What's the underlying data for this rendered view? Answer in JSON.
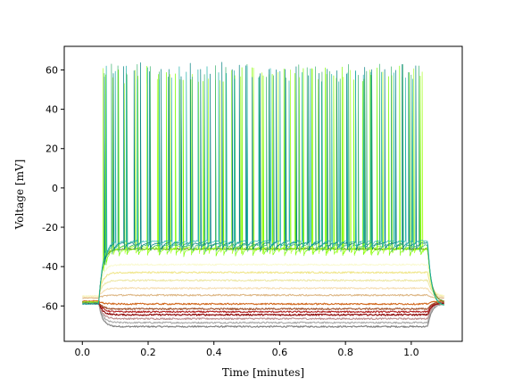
{
  "chart_data": {
    "type": "line",
    "title": "",
    "xlabel": "Time [minutes]",
    "ylabel": "Voltage [mV]",
    "xlim": [
      -0.055,
      1.155
    ],
    "ylim": [
      -78,
      72
    ],
    "x_ticks": [
      "0.0",
      "0.2",
      "0.4",
      "0.6",
      "0.8",
      "1.0"
    ],
    "y_ticks": [
      "-60",
      "-40",
      "-20",
      "0",
      "20",
      "40",
      "60"
    ],
    "grid": false,
    "legend": "none",
    "stimulus_window": [
      0.05,
      1.05
    ],
    "series": [
      {
        "color": "#808080",
        "baseline": -59,
        "plateau": -70.5,
        "spikes": false
      },
      {
        "color": "#a9a9a9",
        "baseline": -59,
        "plateau": -68.5,
        "spikes": false
      },
      {
        "color": "#bc8f8f",
        "baseline": -58.5,
        "plateau": -66.5,
        "spikes": false
      },
      {
        "color": "#8b0000",
        "baseline": -58.5,
        "plateau": -64.5,
        "spikes": false
      },
      {
        "color": "#b22222",
        "baseline": -58,
        "plateau": -63,
        "spikes": false
      },
      {
        "color": "#a0522d",
        "baseline": -58,
        "plateau": -61.5,
        "spikes": false
      },
      {
        "color": "#d2691e",
        "baseline": -57.5,
        "plateau": -59,
        "spikes": false
      },
      {
        "color": "#deb887",
        "baseline": -56,
        "plateau": -54.5,
        "spikes": false
      },
      {
        "color": "#f5deb3",
        "baseline": -55.5,
        "plateau": -51,
        "spikes": false
      },
      {
        "color": "#eee8aa",
        "baseline": -55,
        "plateau": -47,
        "spikes": false
      },
      {
        "color": "#f0e68c",
        "baseline": -55,
        "plateau": -43,
        "spikes": false
      },
      {
        "color": "#fafad2",
        "baseline": -55,
        "plateau": -39,
        "spikes": false
      },
      {
        "color": "#6b8e23",
        "baseline": -58,
        "plateau": -31,
        "spikes": false
      },
      {
        "color": "#7cfc00",
        "baseline": -58,
        "plateau": -31,
        "spikes": true,
        "spike_peak": 62
      },
      {
        "color": "#adff2f",
        "baseline": -58,
        "plateau": -30,
        "spikes": true,
        "spike_peak": 61
      },
      {
        "color": "#3cb371",
        "baseline": -58.5,
        "plateau": -29,
        "spikes": true,
        "spike_peak": 63
      },
      {
        "color": "#008080",
        "baseline": -59,
        "plateau": -28,
        "spikes": true,
        "spike_peak": 64
      },
      {
        "color": "#20b2aa",
        "baseline": -59,
        "plateau": -27,
        "spikes": true,
        "spike_peak": 62
      }
    ]
  }
}
